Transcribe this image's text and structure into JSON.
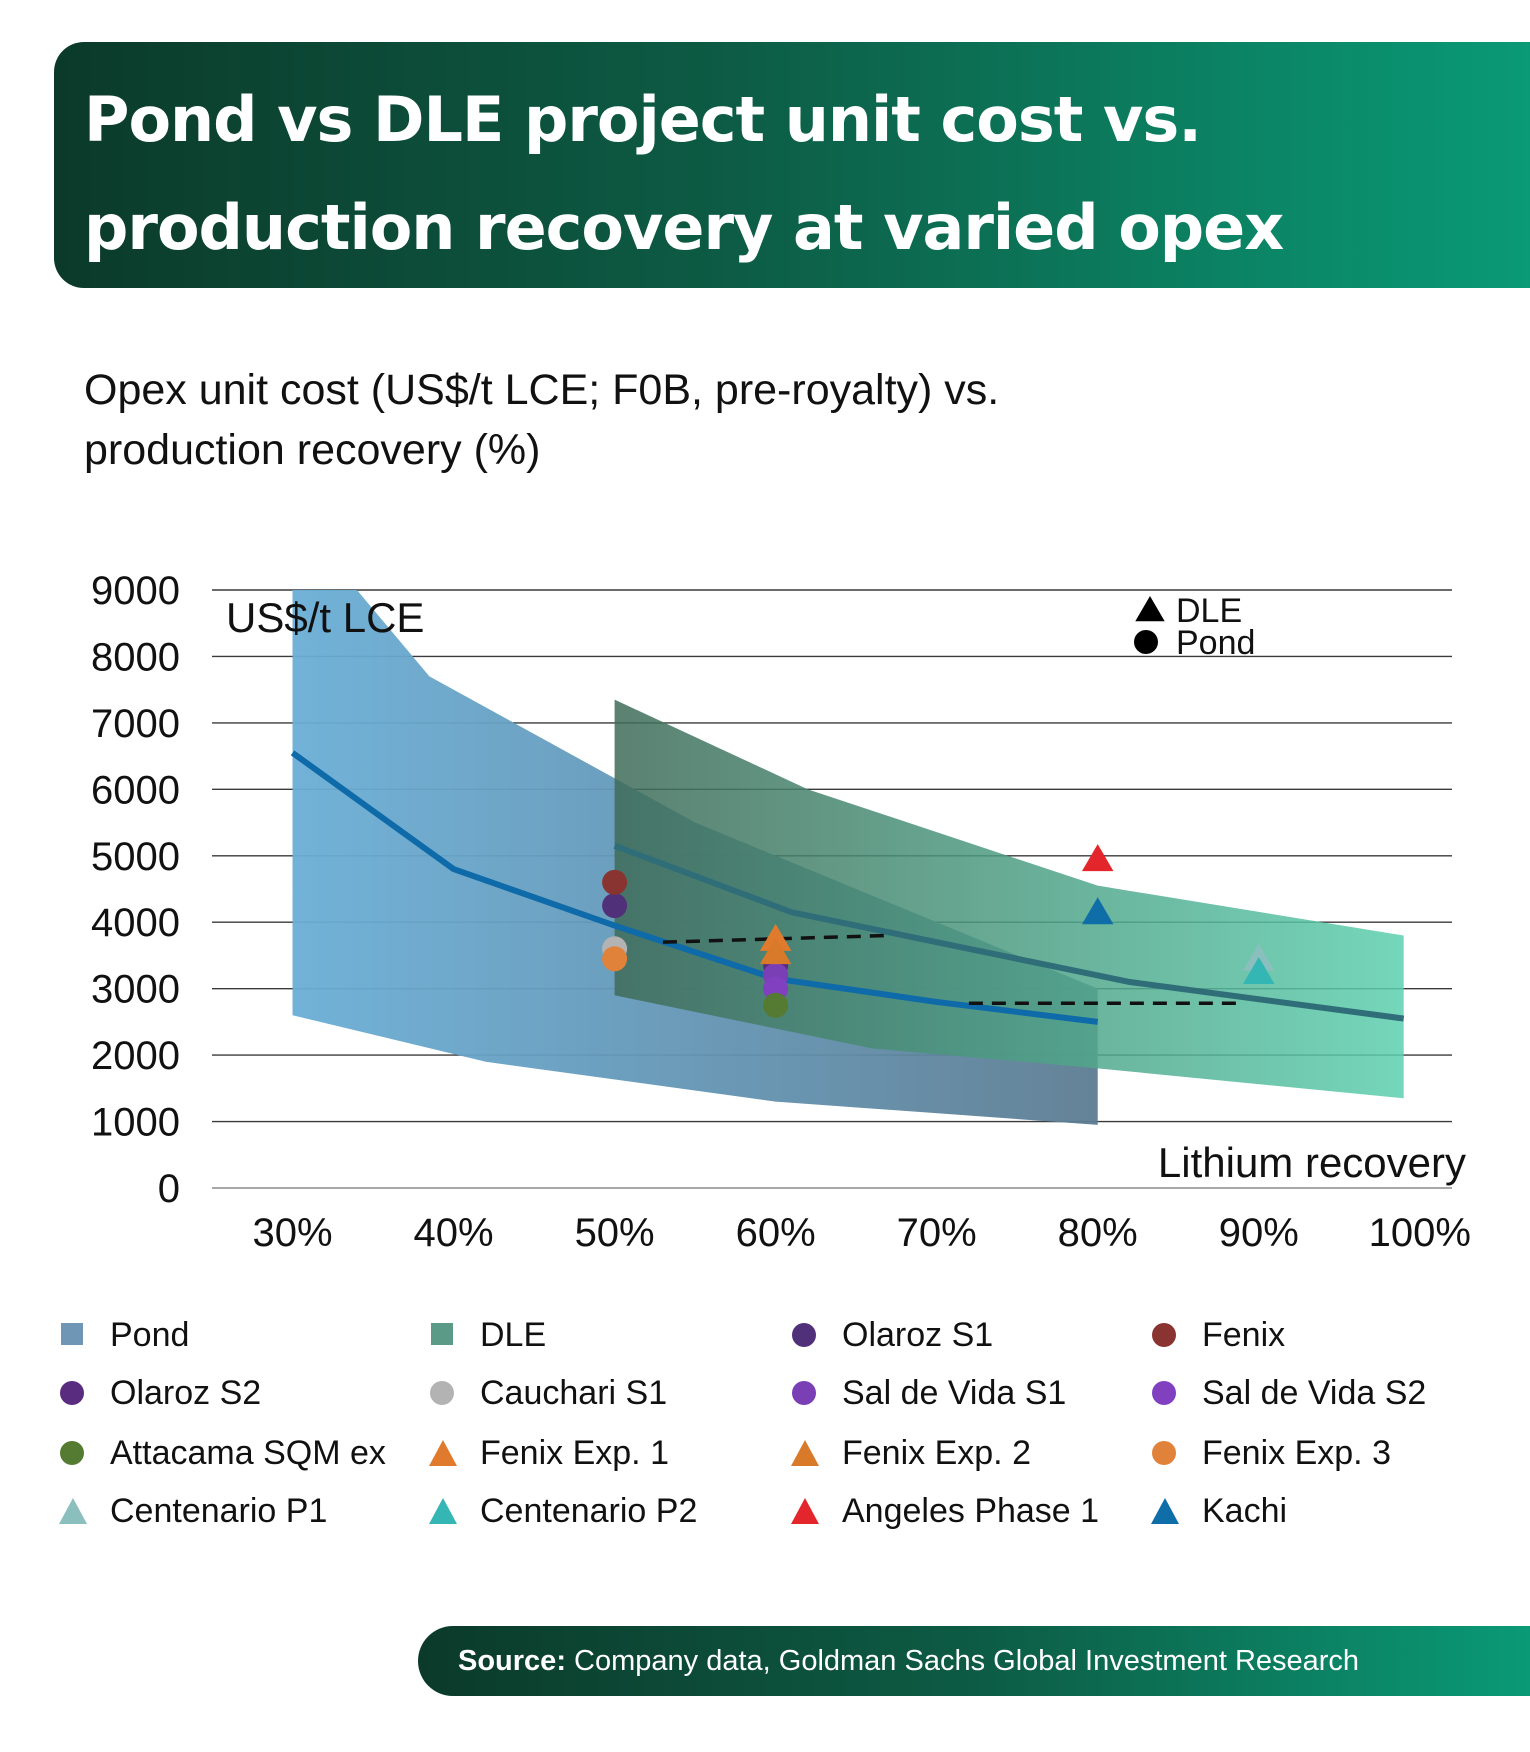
{
  "header": {
    "title": "Pond vs DLE project unit cost vs. production recovery at varied opex scenarios",
    "subtitle": "Opex unit cost (US$/t LCE; F0B, pre-royalty) vs. production recovery (%)"
  },
  "chart_data": {
    "type": "scatter",
    "ylabel": "US$/t LCE",
    "xlabel": "Lithium recovery",
    "ylim": [
      0,
      9000
    ],
    "xlim": [
      25,
      102
    ],
    "y_ticks": [
      "0",
      "1000",
      "2000",
      "3000",
      "4000",
      "5000",
      "6000",
      "7000",
      "8000",
      "9000"
    ],
    "x_ticks": [
      {
        "value": 30,
        "label": "30%"
      },
      {
        "value": 40,
        "label": "40%"
      },
      {
        "value": 50,
        "label": "50%"
      },
      {
        "value": 60,
        "label": "60%"
      },
      {
        "value": 70,
        "label": "70%"
      },
      {
        "value": 80,
        "label": "80%"
      },
      {
        "value": 90,
        "label": "90%"
      },
      {
        "value": 100,
        "label": "100%"
      }
    ],
    "grid": true,
    "colors": {
      "pond_band_start": "#6aaed6",
      "pond_band_end": "#5c7c92",
      "dle_band_start": "#3f6b58",
      "dle_band_end": "#5ccfae",
      "pond_line": "#0e6aa8",
      "dle_line": "#2f6e78"
    },
    "shape_legend": [
      {
        "label": "DLE",
        "marker": "triangle"
      },
      {
        "label": "Pond",
        "marker": "circle"
      }
    ],
    "bands": [
      {
        "name": "Pond",
        "upper": [
          [
            30,
            9000
          ],
          [
            34,
            9000
          ],
          [
            38.5,
            7700
          ],
          [
            55,
            5500
          ],
          [
            80,
            3000
          ]
        ],
        "lower": [
          [
            30,
            2600
          ],
          [
            42,
            1900
          ],
          [
            60,
            1300
          ],
          [
            80,
            950
          ]
        ]
      },
      {
        "name": "DLE",
        "upper": [
          [
            50,
            7350
          ],
          [
            62,
            6000
          ],
          [
            80,
            4550
          ],
          [
            99,
            3800
          ]
        ],
        "lower": [
          [
            50,
            2900
          ],
          [
            66,
            2100
          ],
          [
            80,
            1800
          ],
          [
            99,
            1350
          ]
        ]
      }
    ],
    "lines": [
      {
        "name": "Pond",
        "points": [
          [
            30,
            6550
          ],
          [
            40,
            4800
          ],
          [
            50,
            3950
          ],
          [
            60,
            3150
          ],
          [
            70,
            2800
          ],
          [
            80,
            2500
          ]
        ]
      },
      {
        "name": "DLE",
        "points": [
          [
            50,
            5150
          ],
          [
            61,
            4150
          ],
          [
            70,
            3700
          ],
          [
            82,
            3100
          ],
          [
            99,
            2550
          ]
        ]
      }
    ],
    "dashed_lines": [
      {
        "points": [
          [
            53,
            3700
          ],
          [
            67,
            3800
          ]
        ]
      },
      {
        "points": [
          [
            72,
            2780
          ],
          [
            89,
            2780
          ]
        ]
      }
    ],
    "series": [
      {
        "name": "Olaroz S1",
        "marker": "circle",
        "color": "#51307a",
        "points": [
          [
            50,
            4250
          ]
        ]
      },
      {
        "name": "Fenix",
        "marker": "circle",
        "color": "#8a3431",
        "points": [
          [
            50,
            4600
          ]
        ]
      },
      {
        "name": "Olaroz S2",
        "marker": "circle",
        "color": "#5a2c80",
        "points": [
          [
            60,
            3350
          ]
        ]
      },
      {
        "name": "Cauchari S1",
        "marker": "circle",
        "color": "#b3b3b3",
        "points": [
          [
            50,
            3600
          ]
        ]
      },
      {
        "name": "Sal de Vida S1",
        "marker": "circle",
        "color": "#7b3fb5",
        "points": [
          [
            60,
            3200
          ]
        ]
      },
      {
        "name": "Sal de Vida S2",
        "marker": "circle",
        "color": "#8040c0",
        "points": [
          [
            60,
            3000
          ]
        ]
      },
      {
        "name": "Attacama SQM ex",
        "marker": "circle",
        "color": "#557a31",
        "points": [
          [
            60,
            2750
          ]
        ]
      },
      {
        "name": "Fenix Exp. 1",
        "marker": "triangle",
        "color": "#e07b2d",
        "points": [
          [
            60,
            3750
          ]
        ]
      },
      {
        "name": "Fenix Exp. 2",
        "marker": "triangle",
        "color": "#d97a2a",
        "points": [
          [
            60,
            3550
          ]
        ]
      },
      {
        "name": "Fenix Exp. 3",
        "marker": "circle",
        "color": "#e0823a",
        "points": [
          [
            50,
            3450
          ]
        ]
      },
      {
        "name": "Centenario P1",
        "marker": "triangle",
        "color": "#8abfbe",
        "points": [
          [
            90,
            3450
          ]
        ]
      },
      {
        "name": "Centenario P2",
        "marker": "triangle",
        "color": "#33b6b4",
        "points": [
          [
            90,
            3250
          ]
        ]
      },
      {
        "name": "Angeles Phase 1",
        "marker": "triangle",
        "color": "#e3262b",
        "points": [
          [
            80,
            4950
          ]
        ]
      },
      {
        "name": "Kachi",
        "marker": "triangle",
        "color": "#0f6ea8",
        "points": [
          [
            80,
            4150
          ]
        ]
      }
    ]
  },
  "legend": {
    "items": [
      {
        "label": "Pond",
        "marker": "square",
        "color": "#6f97b5"
      },
      {
        "label": "DLE",
        "marker": "square",
        "color": "#5a9a86"
      },
      {
        "label": "Olaroz S1",
        "marker": "circle",
        "color": "#51307a"
      },
      {
        "label": "Fenix",
        "marker": "circle",
        "color": "#8a3431"
      },
      {
        "label": "Olaroz S2",
        "marker": "circle",
        "color": "#5a2c80"
      },
      {
        "label": "Cauchari S1",
        "marker": "circle",
        "color": "#b3b3b3"
      },
      {
        "label": "Sal de Vida S1",
        "marker": "circle",
        "color": "#7b3fb5"
      },
      {
        "label": "Sal de Vida S2",
        "marker": "circle",
        "color": "#8040c0"
      },
      {
        "label": "Attacama SQM ex",
        "marker": "circle",
        "color": "#557a31"
      },
      {
        "label": "Fenix Exp. 1",
        "marker": "triangle",
        "color": "#e07b2d"
      },
      {
        "label": "Fenix Exp. 2",
        "marker": "triangle",
        "color": "#d97a2a"
      },
      {
        "label": "Fenix Exp. 3",
        "marker": "circle",
        "color": "#e0823a"
      },
      {
        "label": "Centenario P1",
        "marker": "triangle",
        "color": "#8abfbe"
      },
      {
        "label": "Centenario P2",
        "marker": "triangle",
        "color": "#33b6b4"
      },
      {
        "label": "Angeles Phase 1",
        "marker": "triangle",
        "color": "#e3262b"
      },
      {
        "label": "Kachi",
        "marker": "triangle",
        "color": "#0f6ea8"
      }
    ]
  },
  "source": {
    "label": "Source:",
    "text": " Company data, Goldman Sachs Global Investment Research"
  }
}
